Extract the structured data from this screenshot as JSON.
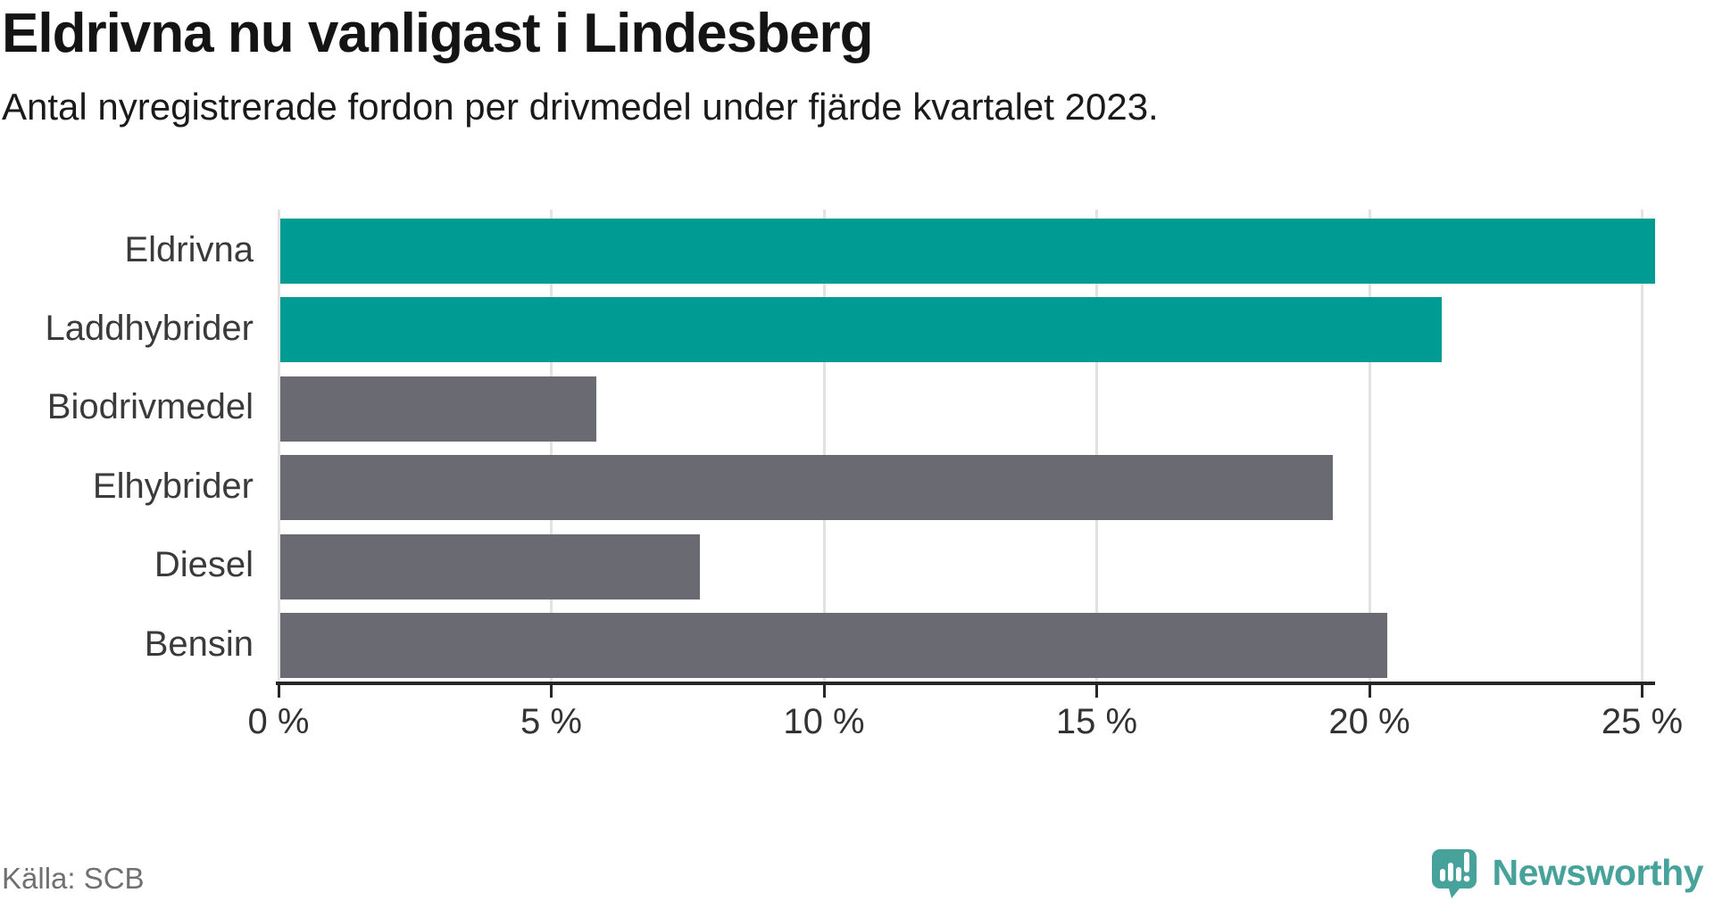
{
  "header": {
    "title": "Eldrivna nu vanligast i Lindesberg",
    "subtitle": "Antal nyregistrerade fordon per drivmedel under fjärde kvartalet 2023."
  },
  "footer": {
    "source": "Källa: SCB",
    "brand": "Newsworthy"
  },
  "colors": {
    "highlight_bar": "#009b93",
    "muted_bar": "#6a6a72",
    "gridline": "#e2e2e2",
    "axis": "#262626",
    "brand_teal": "#47a29b",
    "title_text": "#141414",
    "label_text": "#3a3a3a",
    "source_text": "#707070"
  },
  "chart_data": {
    "type": "bar",
    "orientation": "horizontal",
    "title": "Eldrivna nu vanligast i Lindesberg",
    "subtitle": "Antal nyregistrerade fordon per drivmedel under fjärde kvartalet 2023.",
    "categories": [
      "Eldrivna",
      "Laddhybrider",
      "Biodrivmedel",
      "Elhybrider",
      "Diesel",
      "Bensin"
    ],
    "values": [
      25.2,
      21.3,
      5.8,
      19.3,
      7.7,
      20.3
    ],
    "unit": "%",
    "highlighted": [
      true,
      true,
      false,
      false,
      false,
      false
    ],
    "xlim": [
      0,
      25.2
    ],
    "x_ticks": [
      0,
      5,
      10,
      15,
      20,
      25
    ],
    "x_tick_labels": [
      "0 %",
      "5 %",
      "10 %",
      "15 %",
      "20 %",
      "25 %"
    ],
    "grid": true,
    "legend": false,
    "source": "SCB"
  }
}
